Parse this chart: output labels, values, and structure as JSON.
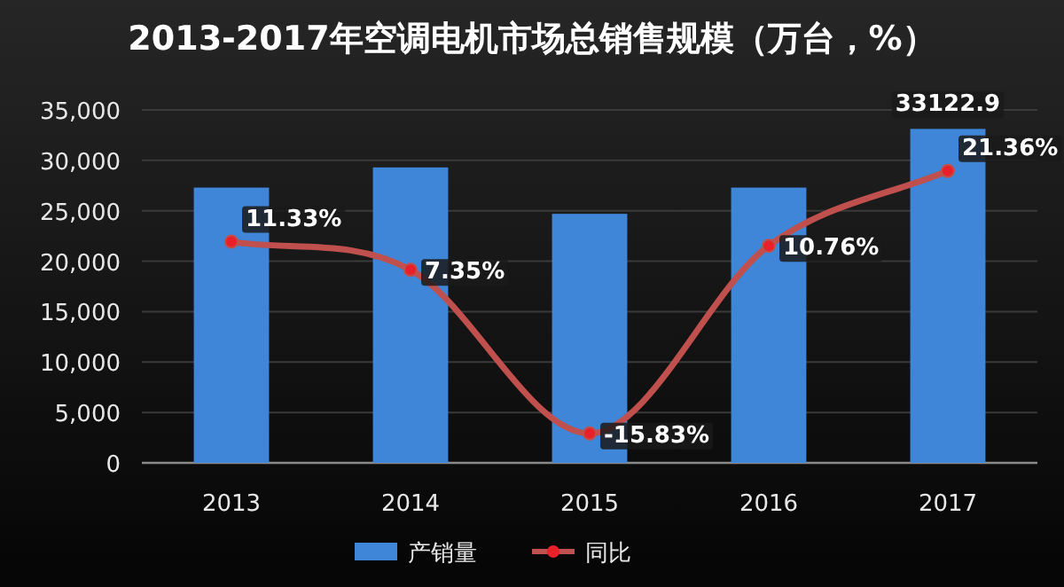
{
  "chart_data": {
    "type": "bar",
    "title": "2013-2017年空调电机市场总销售规模（万台，%）",
    "categories": [
      "2013",
      "2014",
      "2015",
      "2016",
      "2017"
    ],
    "series": [
      {
        "name": "产销量",
        "type": "bar",
        "color": "#3f86d8",
        "values": [
          27300,
          29300,
          24700,
          27300,
          33122.9
        ],
        "value_labels": [
          null,
          null,
          null,
          null,
          "33122.9"
        ]
      },
      {
        "name": "同比",
        "type": "line",
        "axis": "y2",
        "color": "#c0504d",
        "marker": "circle",
        "values": [
          11.33,
          7.35,
          -15.83,
          10.76,
          21.36
        ],
        "value_labels": [
          "11.33%",
          "7.35%",
          "-15.83%",
          "10.76%",
          "21.36%"
        ]
      }
    ],
    "ylim": [
      0,
      35000
    ],
    "yticks": [
      0,
      {
        "value": 5000,
        "label": "5,000"
      },
      {
        "value": 10000,
        "label": "10,000"
      },
      {
        "value": 15000,
        "label": "15,000"
      },
      {
        "value": 20000,
        "label": "20,000"
      },
      {
        "value": 25000,
        "label": "25,000"
      },
      {
        "value": 30000,
        "label": "30,000"
      },
      {
        "value": 35000,
        "label": "35,000"
      }
    ],
    "y2lim": [
      -20,
      30
    ],
    "grid": "y",
    "legend": "bottom"
  }
}
